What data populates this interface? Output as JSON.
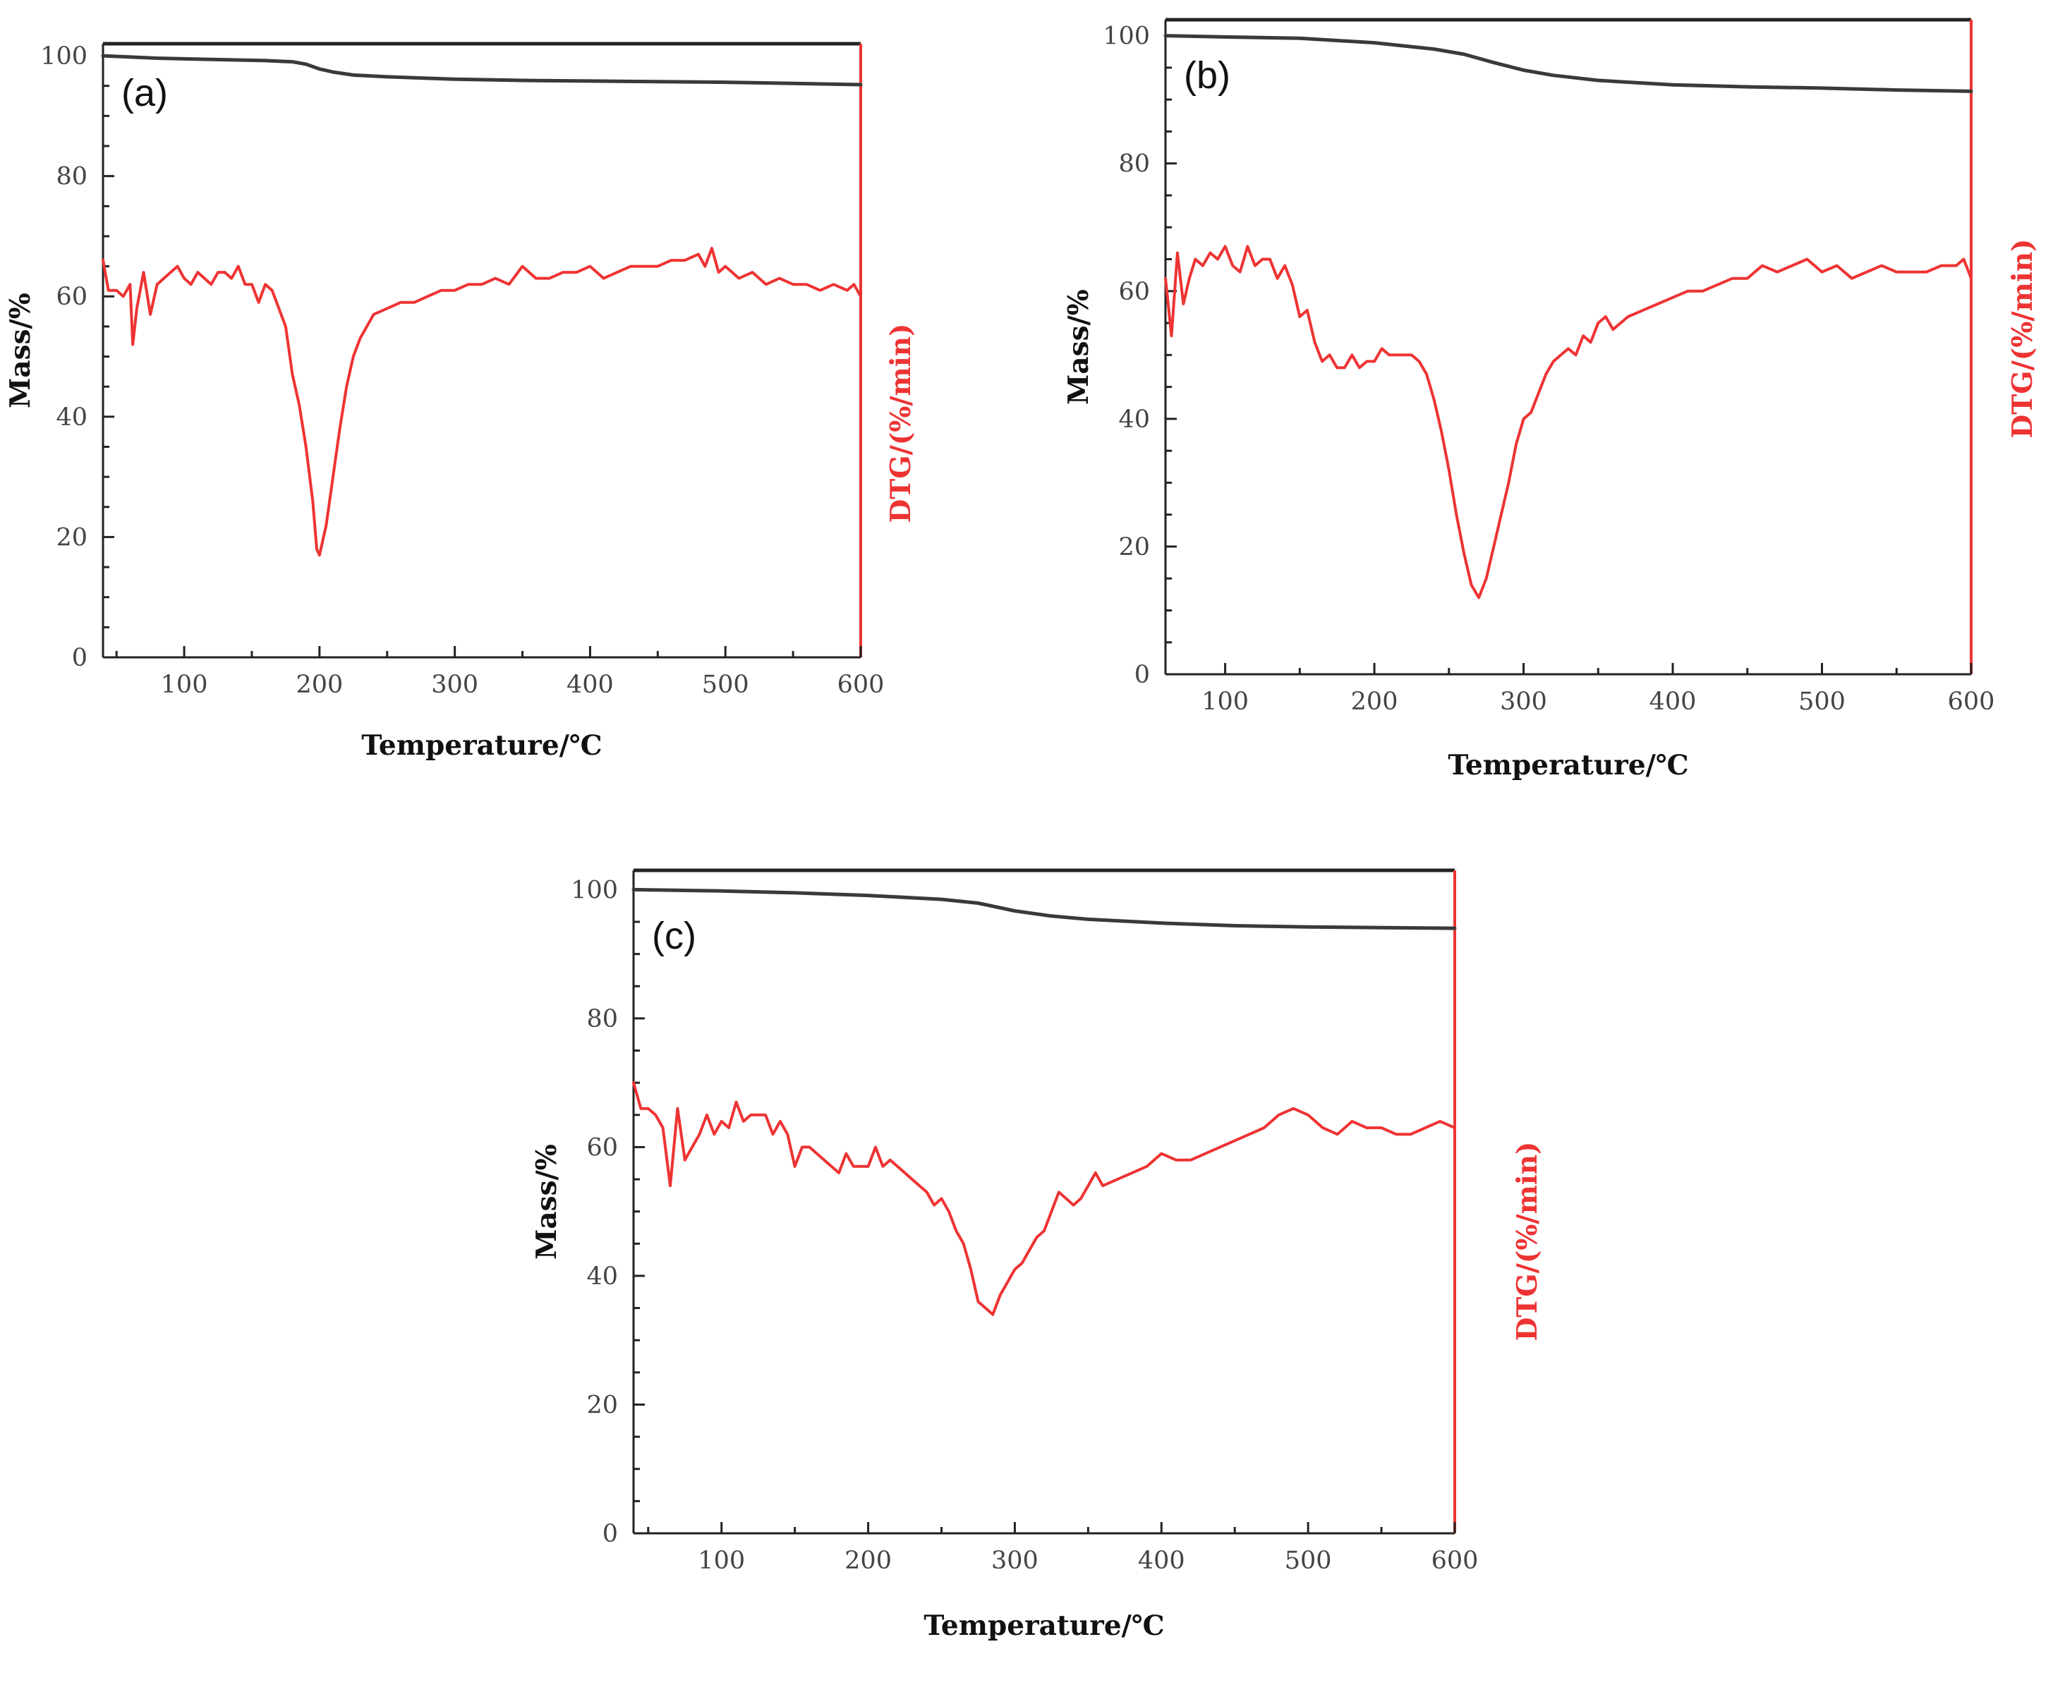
{
  "colors": {
    "mass": "#3a3a3a",
    "dtg": "#ee3333",
    "axis": "#222222",
    "right_axis": "#ee3333"
  },
  "chart_data": [
    {
      "type": "line",
      "panel_label": "(a)",
      "xlabel": "Temperature/℃",
      "ylabel": "Mass/%",
      "y2label": "DTG/(%/min)",
      "xlim": [
        40,
        600
      ],
      "ylim": [
        0,
        102
      ],
      "xticks": [
        100,
        200,
        300,
        400,
        500,
        600
      ],
      "xtick_labels": [
        "100",
        "200",
        "300",
        "400",
        "500",
        "600"
      ],
      "yticks": [
        0,
        20,
        40,
        60,
        80,
        100
      ],
      "ytick_labels": [
        "0",
        "20",
        "40",
        "60",
        "80",
        "100"
      ],
      "series": [
        {
          "name": "Mass",
          "x": [
            40,
            80,
            120,
            160,
            180,
            190,
            200,
            210,
            225,
            250,
            300,
            350,
            400,
            450,
            500,
            550,
            600
          ],
          "y": [
            100,
            99.6,
            99.4,
            99.2,
            99,
            98.6,
            97.8,
            97.3,
            96.8,
            96.5,
            96.1,
            95.9,
            95.8,
            95.7,
            95.6,
            95.4,
            95.2
          ]
        },
        {
          "name": "DTG",
          "x": [
            40,
            44,
            50,
            55,
            60,
            62,
            65,
            70,
            75,
            80,
            85,
            90,
            95,
            100,
            105,
            110,
            115,
            120,
            125,
            130,
            135,
            140,
            145,
            150,
            155,
            160,
            165,
            170,
            175,
            180,
            185,
            190,
            195,
            198,
            200,
            205,
            210,
            215,
            220,
            225,
            230,
            240,
            250,
            260,
            270,
            280,
            290,
            300,
            310,
            320,
            330,
            340,
            350,
            360,
            370,
            380,
            390,
            400,
            410,
            420,
            430,
            440,
            450,
            460,
            470,
            480,
            485,
            490,
            495,
            500,
            510,
            520,
            530,
            540,
            550,
            560,
            570,
            580,
            590,
            595,
            600
          ],
          "y": [
            66,
            61,
            61,
            60,
            62,
            52,
            58,
            64,
            57,
            62,
            63,
            64,
            65,
            63,
            62,
            64,
            63,
            62,
            64,
            64,
            63,
            65,
            62,
            62,
            59,
            62,
            61,
            58,
            55,
            47,
            42,
            35,
            26,
            18,
            17,
            22,
            30,
            38,
            45,
            50,
            53,
            57,
            58,
            59,
            59,
            60,
            61,
            61,
            62,
            62,
            63,
            62,
            65,
            63,
            63,
            64,
            64,
            65,
            63,
            64,
            65,
            65,
            65,
            66,
            66,
            67,
            65,
            68,
            64,
            65,
            63,
            64,
            62,
            63,
            62,
            62,
            61,
            62,
            61,
            62,
            60
          ]
        }
      ]
    },
    {
      "type": "line",
      "panel_label": "(b)",
      "xlabel": "Temperature/℃",
      "ylabel": "Mass/%",
      "y2label": "DTG/(%/min)",
      "xlim": [
        60,
        600
      ],
      "ylim": [
        0,
        102.5
      ],
      "xticks": [
        100,
        200,
        300,
        400,
        500,
        600
      ],
      "xtick_labels": [
        "100",
        "200",
        "300",
        "400",
        "500",
        "600"
      ],
      "yticks": [
        0,
        20,
        40,
        60,
        80,
        100
      ],
      "ytick_labels": [
        "0",
        "20",
        "40",
        "60",
        "80",
        "100"
      ],
      "series": [
        {
          "name": "Mass",
          "x": [
            60,
            100,
            150,
            200,
            240,
            260,
            280,
            300,
            320,
            350,
            400,
            450,
            500,
            550,
            600
          ],
          "y": [
            100,
            99.8,
            99.6,
            98.9,
            97.9,
            97.1,
            95.8,
            94.6,
            93.8,
            93,
            92.3,
            92,
            91.8,
            91.5,
            91.3
          ]
        },
        {
          "name": "DTG",
          "x": [
            60,
            64,
            68,
            72,
            76,
            80,
            85,
            90,
            95,
            100,
            105,
            110,
            115,
            120,
            125,
            130,
            135,
            140,
            145,
            150,
            155,
            160,
            165,
            170,
            175,
            180,
            185,
            190,
            195,
            200,
            205,
            210,
            215,
            220,
            225,
            230,
            235,
            240,
            245,
            250,
            255,
            260,
            265,
            270,
            275,
            280,
            285,
            290,
            295,
            300,
            305,
            310,
            315,
            320,
            325,
            330,
            335,
            340,
            345,
            350,
            355,
            360,
            365,
            370,
            380,
            390,
            400,
            410,
            420,
            430,
            440,
            450,
            460,
            470,
            480,
            490,
            500,
            510,
            520,
            530,
            540,
            550,
            560,
            570,
            580,
            590,
            595,
            600
          ],
          "y": [
            62,
            53,
            66,
            58,
            62,
            65,
            64,
            66,
            65,
            67,
            64,
            63,
            67,
            64,
            65,
            65,
            62,
            64,
            61,
            56,
            57,
            52,
            49,
            50,
            48,
            48,
            50,
            48,
            49,
            49,
            51,
            50,
            50,
            50,
            50,
            49,
            47,
            43,
            38,
            32,
            25,
            19,
            14,
            12,
            15,
            20,
            25,
            30,
            36,
            40,
            41,
            44,
            47,
            49,
            50,
            51,
            50,
            53,
            52,
            55,
            56,
            54,
            55,
            56,
            57,
            58,
            59,
            60,
            60,
            61,
            62,
            62,
            64,
            63,
            64,
            65,
            63,
            64,
            62,
            63,
            64,
            63,
            63,
            63,
            64,
            64,
            65,
            62
          ]
        }
      ]
    },
    {
      "type": "line",
      "panel_label": "(c)",
      "xlabel": "Temperature/℃",
      "ylabel": "Mass/%",
      "y2label": "DTG/(%/min)",
      "xlim": [
        40,
        600
      ],
      "ylim": [
        0,
        103
      ],
      "xticks": [
        100,
        200,
        300,
        400,
        500,
        600
      ],
      "xtick_labels": [
        "100",
        "200",
        "300",
        "400",
        "500",
        "600"
      ],
      "yticks": [
        0,
        20,
        40,
        60,
        80,
        100
      ],
      "ytick_labels": [
        "0",
        "20",
        "40",
        "60",
        "80",
        "100"
      ],
      "series": [
        {
          "name": "Mass",
          "x": [
            40,
            100,
            150,
            200,
            250,
            275,
            300,
            325,
            350,
            400,
            450,
            500,
            550,
            600
          ],
          "y": [
            100,
            99.8,
            99.5,
            99.1,
            98.5,
            97.9,
            96.7,
            95.9,
            95.4,
            94.8,
            94.4,
            94.2,
            94.1,
            94
          ]
        },
        {
          "name": "DTG",
          "x": [
            40,
            45,
            50,
            55,
            60,
            65,
            70,
            75,
            80,
            85,
            90,
            95,
            100,
            105,
            110,
            115,
            120,
            125,
            130,
            135,
            140,
            145,
            150,
            155,
            160,
            170,
            180,
            185,
            190,
            195,
            200,
            205,
            210,
            215,
            220,
            225,
            230,
            235,
            240,
            245,
            250,
            255,
            260,
            265,
            270,
            275,
            280,
            285,
            290,
            295,
            300,
            305,
            310,
            315,
            320,
            325,
            330,
            335,
            340,
            345,
            350,
            355,
            360,
            370,
            380,
            390,
            400,
            410,
            420,
            430,
            440,
            450,
            460,
            470,
            480,
            490,
            500,
            510,
            520,
            530,
            540,
            550,
            560,
            570,
            580,
            590,
            600
          ],
          "y": [
            70,
            66,
            66,
            65,
            63,
            54,
            66,
            58,
            60,
            62,
            65,
            62,
            64,
            63,
            67,
            64,
            65,
            65,
            65,
            62,
            64,
            62,
            57,
            60,
            60,
            58,
            56,
            59,
            57,
            57,
            57,
            60,
            57,
            58,
            57,
            56,
            55,
            54,
            53,
            51,
            52,
            50,
            47,
            45,
            41,
            36,
            35,
            34,
            37,
            39,
            41,
            42,
            44,
            46,
            47,
            50,
            53,
            52,
            51,
            52,
            54,
            56,
            54,
            55,
            56,
            57,
            59,
            58,
            58,
            59,
            60,
            61,
            62,
            63,
            65,
            66,
            65,
            63,
            62,
            64,
            63,
            63,
            62,
            62,
            63,
            64,
            63
          ]
        }
      ]
    }
  ]
}
